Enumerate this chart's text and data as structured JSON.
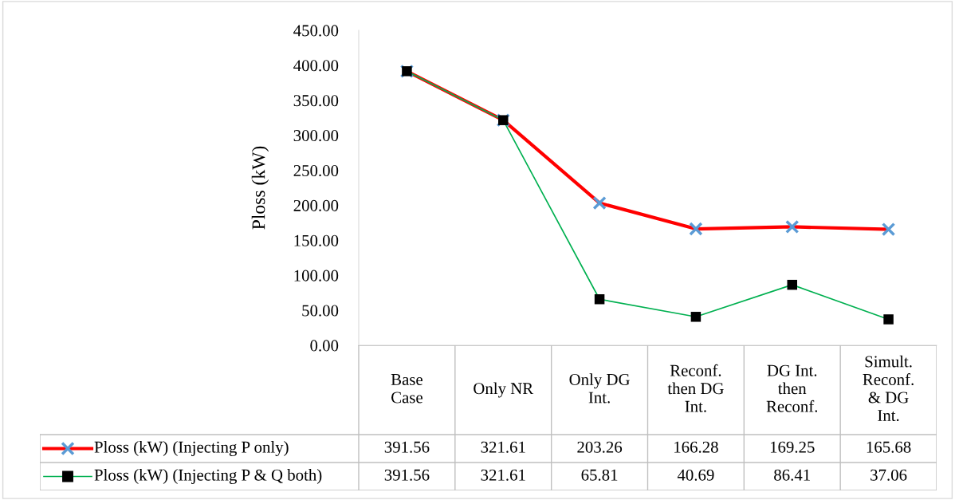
{
  "chart_data": {
    "type": "line",
    "ylabel": "Ploss (kW)",
    "categories": [
      "Base\nCase",
      "Only NR",
      "Only DG\nInt.",
      "Reconf.\nthen DG\nInt.",
      "DG Int.\nthen\nReconf.",
      "Simult.\nReconf.\n& DG\nInt."
    ],
    "series": [
      {
        "name": "Ploss (kW) (Injecting P only)",
        "color": "#ff0000",
        "marker": "cross",
        "colors": [
          "#5b9bd5",
          "#5b9bd5",
          "#5b9bd5",
          "#5b9bd5",
          "#5b9bd5",
          "#5b9bd5"
        ],
        "values": [
          391.56,
          321.61,
          203.26,
          166.28,
          169.25,
          165.68
        ]
      },
      {
        "name": "Ploss (kW) (Injecting P & Q both)",
        "color": "#00b050",
        "marker": "square",
        "colors": [
          "#000000",
          "#000000",
          "#000000",
          "#000000",
          "#000000",
          "#000000"
        ],
        "values": [
          391.56,
          321.61,
          65.81,
          40.69,
          86.41,
          37.06
        ]
      }
    ],
    "ylim": [
      0,
      450
    ],
    "yticks": [
      {
        "value": 0,
        "label": "0.00"
      },
      {
        "value": 50,
        "label": "50.00"
      },
      {
        "value": 100,
        "label": "100.00"
      },
      {
        "value": 150,
        "label": "150.00"
      },
      {
        "value": 200,
        "label": "200.00"
      },
      {
        "value": 250,
        "label": "250.00"
      },
      {
        "value": 300,
        "label": "300.00"
      },
      {
        "value": 350,
        "label": "350.00"
      },
      {
        "value": 400,
        "label": "400.00"
      },
      {
        "value": 450,
        "label": "450.00"
      }
    ],
    "grid": false,
    "legend": "bottom",
    "data_labels": true
  }
}
